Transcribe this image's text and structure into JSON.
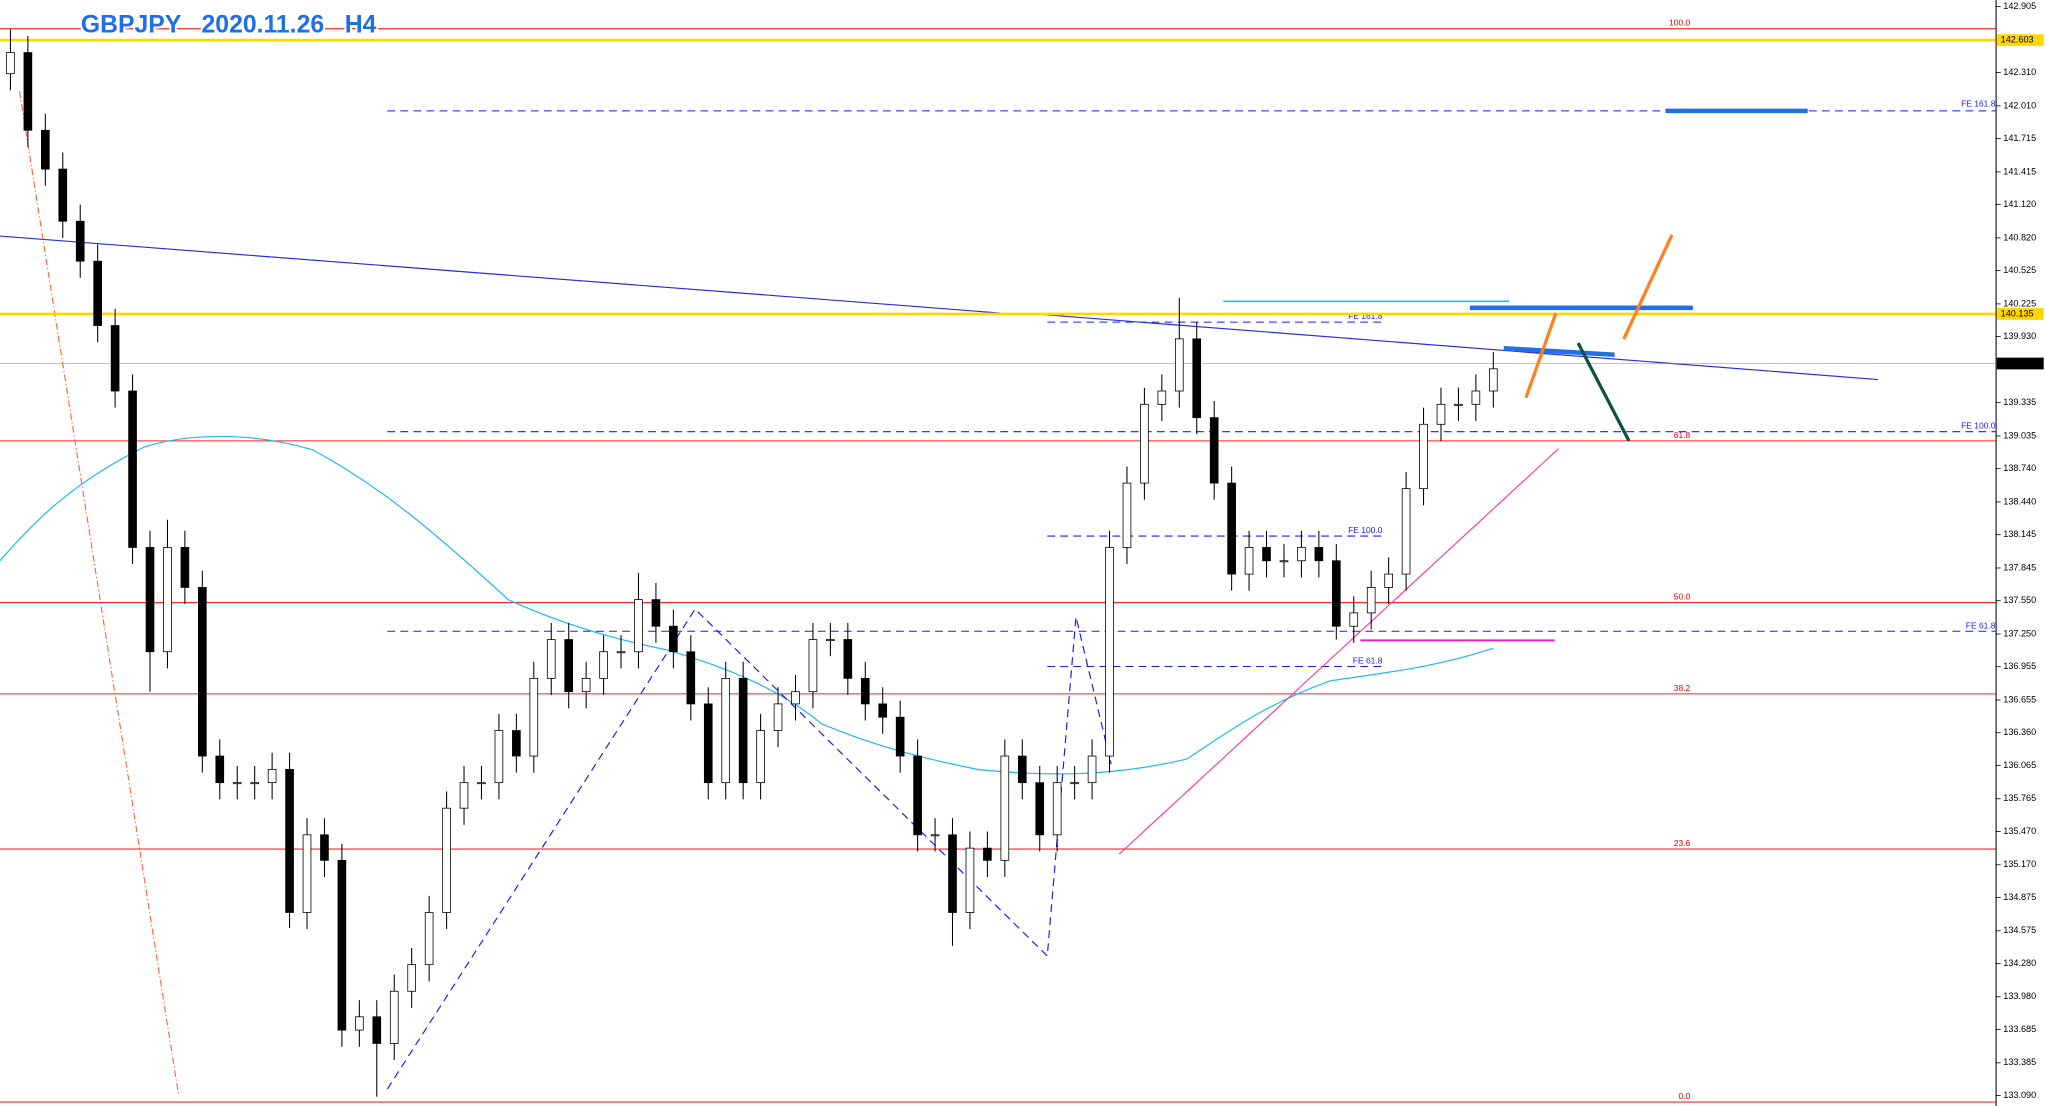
{
  "chart_data": {
    "type": "candlestick",
    "title": "GBPJPY   2020.11.26   H4",
    "open": [
      142.3,
      142.49,
      141.79,
      141.44,
      140.97,
      140.61,
      140.03,
      139.44,
      138.03,
      137.09,
      138.03,
      137.67,
      136.15,
      135.91,
      135.91,
      135.91,
      136.03,
      134.74,
      135.44,
      135.21,
      133.68,
      133.8,
      133.56,
      134.03,
      134.27,
      134.74,
      135.68,
      135.91,
      135.91,
      136.38,
      136.15,
      136.85,
      137.2,
      136.73,
      136.85,
      137.09,
      137.09,
      137.56,
      137.32,
      137.09,
      136.62,
      135.91,
      136.85,
      135.91,
      136.38,
      136.62,
      136.73,
      137.2,
      137.2,
      136.85,
      136.62,
      136.5,
      136.15,
      135.44,
      135.44,
      134.74,
      135.32,
      135.21,
      136.15,
      135.91,
      135.44,
      135.91,
      135.91,
      136.15,
      138.03,
      138.61,
      139.32,
      139.44,
      139.91,
      139.2,
      138.61,
      137.79,
      138.03,
      137.91,
      137.91,
      138.03,
      137.91,
      137.32,
      137.44,
      137.67,
      137.79,
      138.56,
      139.14,
      139.32,
      139.32,
      139.44
    ],
    "high": [
      142.7,
      142.64,
      141.94,
      141.59,
      141.12,
      140.76,
      140.18,
      139.59,
      138.18,
      138.28,
      138.18,
      137.82,
      136.3,
      136.06,
      136.06,
      136.18,
      136.18,
      135.59,
      135.59,
      135.36,
      133.95,
      133.95,
      134.18,
      134.42,
      134.89,
      135.83,
      136.06,
      136.06,
      136.53,
      136.53,
      137.0,
      137.35,
      137.35,
      137.0,
      137.24,
      137.24,
      137.8,
      137.71,
      137.47,
      137.24,
      136.77,
      137.0,
      137.0,
      136.53,
      136.77,
      136.88,
      137.35,
      137.35,
      137.35,
      137.0,
      136.77,
      136.65,
      136.3,
      135.59,
      135.59,
      135.47,
      135.47,
      136.3,
      136.3,
      136.06,
      136.06,
      136.06,
      136.3,
      138.18,
      138.76,
      139.47,
      139.59,
      140.28,
      140.06,
      139.35,
      138.76,
      138.18,
      138.18,
      138.06,
      138.18,
      138.18,
      138.06,
      137.59,
      137.82,
      137.94,
      138.71,
      139.29,
      139.47,
      139.47,
      139.59,
      139.79
    ],
    "low": [
      142.15,
      141.64,
      141.29,
      140.82,
      140.46,
      139.88,
      139.29,
      137.88,
      136.73,
      136.94,
      137.52,
      136.0,
      135.76,
      135.76,
      135.76,
      135.76,
      134.6,
      134.59,
      135.06,
      133.53,
      133.53,
      133.08,
      133.41,
      133.88,
      134.12,
      134.59,
      135.53,
      135.76,
      135.76,
      136.0,
      136.0,
      136.7,
      136.58,
      136.58,
      136.7,
      136.94,
      136.94,
      137.17,
      136.94,
      136.47,
      135.76,
      135.76,
      135.76,
      135.76,
      136.23,
      136.47,
      136.58,
      137.05,
      136.7,
      136.47,
      136.35,
      136.0,
      135.29,
      135.29,
      134.44,
      134.59,
      135.06,
      135.06,
      135.76,
      135.29,
      135.29,
      135.76,
      135.76,
      136.0,
      137.88,
      138.46,
      139.17,
      139.29,
      139.05,
      138.46,
      137.64,
      137.64,
      137.76,
      137.76,
      137.76,
      137.76,
      137.2,
      137.17,
      137.29,
      137.52,
      137.64,
      138.41,
      138.99,
      139.17,
      139.17,
      139.29
    ],
    "close": [
      142.49,
      141.79,
      141.44,
      140.97,
      140.61,
      140.03,
      139.44,
      138.03,
      137.09,
      138.03,
      137.67,
      136.15,
      135.91,
      135.91,
      135.91,
      136.03,
      134.74,
      135.44,
      135.21,
      133.68,
      133.8,
      133.56,
      134.03,
      134.27,
      134.74,
      135.68,
      135.91,
      135.91,
      136.38,
      136.15,
      136.85,
      137.2,
      136.73,
      136.85,
      137.09,
      137.09,
      137.56,
      137.32,
      137.09,
      136.62,
      135.91,
      136.85,
      135.91,
      136.38,
      136.62,
      136.73,
      137.2,
      137.2,
      136.85,
      136.62,
      136.5,
      136.15,
      135.44,
      135.44,
      134.74,
      135.32,
      135.21,
      136.15,
      135.91,
      135.44,
      135.91,
      135.91,
      136.15,
      138.03,
      138.61,
      139.32,
      139.44,
      139.91,
      139.2,
      138.61,
      137.79,
      138.03,
      137.91,
      137.91,
      138.03,
      137.91,
      137.32,
      137.44,
      137.67,
      137.79,
      138.56,
      139.14,
      139.32,
      139.32,
      139.44,
      139.64
    ],
    "up_color": "#ffffff",
    "down_color": "#000000",
    "ylim": [
      132.996,
      142.964
    ],
    "yticks": [
      142.905,
      {
        "value": 142.31,
        "label": "142.310"
      },
      {
        "value": 142.01,
        "label": "142.010"
      },
      141.715,
      141.415,
      {
        "value": 141.12,
        "label": "141.120"
      },
      {
        "value": 140.82,
        "label": "140.820"
      },
      140.525,
      140.225,
      {
        "value": 139.93,
        "label": "139.930"
      },
      139.335,
      139.035,
      {
        "value": 138.74,
        "label": "138.740"
      },
      {
        "value": 138.44,
        "label": "138.440"
      },
      138.145,
      137.845,
      {
        "value": 137.55,
        "label": "137.550"
      },
      {
        "value": 137.25,
        "label": "137.250"
      },
      136.955,
      136.655,
      {
        "value": 136.36,
        "label": "136.360"
      },
      136.065,
      135.765,
      {
        "value": 135.47,
        "label": "135.470"
      },
      {
        "value": 135.17,
        "label": "135.170"
      },
      134.875,
      134.575,
      {
        "value": 134.28,
        "label": "134.280"
      },
      {
        "value": 133.98,
        "label": "133.980"
      },
      133.685,
      133.385,
      {
        "value": 133.09,
        "label": "133.090"
      }
    ],
    "levels": [
      {
        "value": 142.603,
        "color": "#ffd700",
        "width": 2
      },
      {
        "value": 140.135,
        "color": "#ffd700",
        "width": 2
      },
      {
        "value": 139.688,
        "color": "#000000",
        "width": 0.4
      }
    ]
  },
  "annotations": {
    "fib_retracement": [
      "100.0",
      "61.8",
      "50.0",
      "38.2",
      "23.6",
      "0.0"
    ],
    "fib_expansion_wide": [
      "FE 161.8",
      "FE 100.0",
      "FE 61.8"
    ],
    "fib_expansion_narrow": [
      "FE 161.8",
      "FE 100.0",
      "FE 61.8"
    ]
  }
}
